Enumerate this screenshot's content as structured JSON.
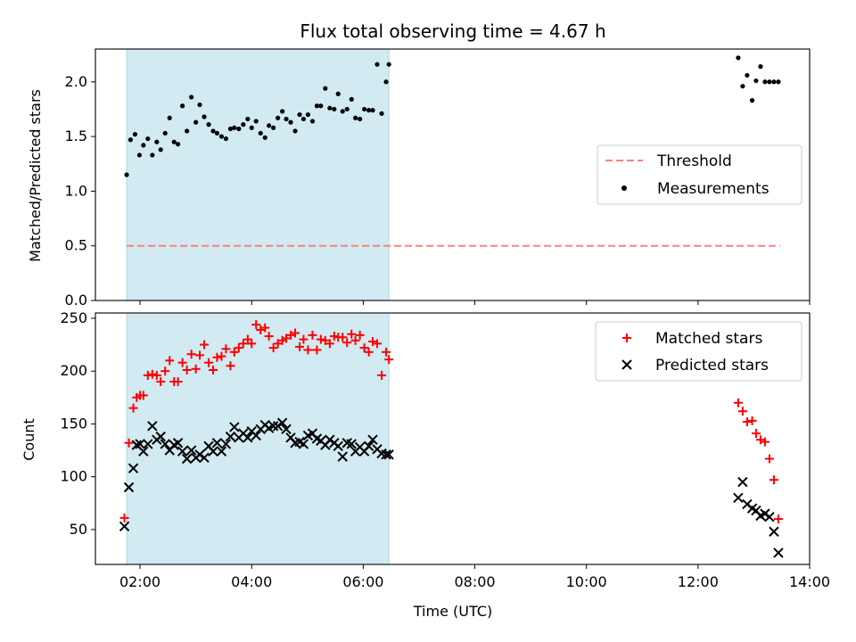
{
  "figure": {
    "title": "Flux total observing time = 4.67 h"
  },
  "chart_data": [
    {
      "type": "scatter",
      "panel": "top",
      "ylabel": "Matched/Predicted stars",
      "xlim": [
        1.2,
        14.0
      ],
      "ylim": [
        0.0,
        2.3
      ],
      "yticks": [
        0.0,
        0.5,
        1.0,
        1.5,
        2.0
      ],
      "ytick_labels": [
        "0.0",
        "0.5",
        "1.0",
        "1.5",
        "2.0"
      ],
      "shaded_span": {
        "x0": 1.76,
        "x1": 6.46,
        "color": "#add8e6"
      },
      "threshold": {
        "name": "Threshold",
        "y": 0.5,
        "x": [
          1.76,
          13.47
        ],
        "color": "#ff7f7f"
      },
      "legend": {
        "placement": "center-right",
        "entries": [
          "Threshold",
          "Measurements"
        ]
      },
      "series": [
        {
          "name": "Measurements",
          "color": "#000000",
          "marker": "dot",
          "x": [
            1.76,
            1.83,
            1.91,
            1.99,
            2.06,
            2.14,
            2.22,
            2.3,
            2.37,
            2.45,
            2.53,
            2.61,
            2.68,
            2.76,
            2.84,
            2.92,
            3.0,
            3.07,
            3.15,
            3.23,
            3.31,
            3.38,
            3.46,
            3.54,
            3.62,
            3.69,
            3.77,
            3.85,
            3.93,
            4.0,
            4.08,
            4.16,
            4.24,
            4.31,
            4.39,
            4.47,
            4.55,
            4.62,
            4.7,
            4.78,
            4.86,
            4.93,
            5.01,
            5.09,
            5.17,
            5.24,
            5.32,
            5.4,
            5.48,
            5.55,
            5.63,
            5.71,
            5.79,
            5.86,
            5.94,
            6.02,
            6.1,
            6.17,
            6.25,
            6.33,
            6.41,
            6.46,
            12.72,
            12.8,
            12.88,
            12.97,
            13.04,
            13.12,
            13.2,
            13.28,
            13.36,
            13.44
          ],
          "y": [
            1.15,
            1.47,
            1.52,
            1.33,
            1.42,
            1.48,
            1.33,
            1.45,
            1.38,
            1.53,
            1.67,
            1.45,
            1.43,
            1.78,
            1.55,
            1.86,
            1.63,
            1.79,
            1.68,
            1.61,
            1.55,
            1.53,
            1.5,
            1.48,
            1.57,
            1.58,
            1.57,
            1.61,
            1.66,
            1.58,
            1.64,
            1.53,
            1.49,
            1.6,
            1.58,
            1.67,
            1.73,
            1.66,
            1.63,
            1.55,
            1.7,
            1.66,
            1.7,
            1.64,
            1.78,
            1.78,
            1.94,
            1.76,
            1.75,
            1.89,
            1.73,
            1.75,
            1.84,
            1.67,
            1.66,
            1.75,
            1.74,
            1.74,
            2.16,
            1.71,
            2.0,
            2.16,
            2.22,
            1.96,
            2.06,
            1.83,
            2.01,
            2.14,
            2.0,
            2.0,
            2.0,
            2.0
          ]
        }
      ]
    },
    {
      "type": "scatter",
      "panel": "bottom",
      "xlabel": "Time (UTC)",
      "ylabel": "Count",
      "xlim": [
        1.2,
        14.0
      ],
      "ylim": [
        17,
        255
      ],
      "xticks": [
        2,
        4,
        6,
        8,
        10,
        12,
        14
      ],
      "xtick_labels": [
        "02:00",
        "04:00",
        "06:00",
        "08:00",
        "10:00",
        "12:00",
        "14:00"
      ],
      "yticks": [
        50,
        100,
        150,
        200,
        250
      ],
      "ytick_labels": [
        "50",
        "100",
        "150",
        "200",
        "250"
      ],
      "shaded_span": {
        "x0": 1.76,
        "x1": 6.46,
        "color": "#add8e6"
      },
      "legend": {
        "placement": "top-right",
        "entries": [
          "Matched stars",
          "Predicted stars"
        ]
      },
      "series": [
        {
          "name": "Matched stars",
          "color": "#ff0000",
          "marker": "plus",
          "x": [
            1.72,
            1.8,
            1.88,
            1.94,
            2.0,
            2.06,
            2.14,
            2.22,
            2.3,
            2.37,
            2.45,
            2.53,
            2.61,
            2.68,
            2.76,
            2.84,
            2.92,
            3.0,
            3.07,
            3.15,
            3.23,
            3.31,
            3.38,
            3.46,
            3.54,
            3.62,
            3.69,
            3.77,
            3.85,
            3.93,
            4.0,
            4.08,
            4.16,
            4.24,
            4.31,
            4.39,
            4.47,
            4.55,
            4.62,
            4.7,
            4.78,
            4.86,
            4.93,
            5.01,
            5.09,
            5.17,
            5.24,
            5.32,
            5.4,
            5.48,
            5.55,
            5.63,
            5.71,
            5.79,
            5.86,
            5.94,
            6.02,
            6.1,
            6.17,
            6.25,
            6.33,
            6.41,
            6.46,
            12.72,
            12.8,
            12.88,
            12.97,
            13.04,
            13.12,
            13.2,
            13.28,
            13.36,
            13.44
          ],
          "y": [
            61,
            132,
            165,
            175,
            177,
            177,
            196,
            197,
            196,
            190,
            200,
            210,
            190,
            190,
            208,
            201,
            216,
            202,
            215,
            225,
            208,
            201,
            213,
            214,
            221,
            205,
            218,
            222,
            226,
            230,
            226,
            244,
            239,
            241,
            233,
            222,
            226,
            229,
            231,
            234,
            236,
            223,
            230,
            220,
            234,
            220,
            230,
            229,
            226,
            233,
            232,
            232,
            227,
            235,
            229,
            234,
            222,
            218,
            228,
            226,
            196,
            218,
            211,
            170,
            162,
            152,
            153,
            141,
            135,
            133,
            117,
            97,
            60
          ]
        },
        {
          "name": "Predicted stars",
          "color": "#000000",
          "marker": "x",
          "x": [
            1.72,
            1.8,
            1.88,
            1.94,
            2.0,
            2.06,
            2.14,
            2.22,
            2.3,
            2.37,
            2.45,
            2.53,
            2.61,
            2.68,
            2.76,
            2.84,
            2.92,
            3.0,
            3.07,
            3.15,
            3.23,
            3.31,
            3.38,
            3.46,
            3.54,
            3.62,
            3.69,
            3.77,
            3.85,
            3.93,
            4.0,
            4.08,
            4.16,
            4.24,
            4.31,
            4.39,
            4.47,
            4.55,
            4.62,
            4.7,
            4.78,
            4.86,
            4.93,
            5.01,
            5.09,
            5.17,
            5.24,
            5.32,
            5.4,
            5.48,
            5.55,
            5.63,
            5.71,
            5.79,
            5.86,
            5.94,
            6.02,
            6.1,
            6.17,
            6.25,
            6.33,
            6.41,
            6.46,
            12.72,
            12.8,
            12.88,
            12.97,
            13.04,
            13.12,
            13.2,
            13.28,
            13.36,
            13.44
          ],
          "y": [
            53,
            90,
            108,
            130,
            131,
            124,
            131,
            148,
            135,
            138,
            131,
            125,
            130,
            132,
            124,
            117,
            125,
            118,
            121,
            118,
            129,
            124,
            132,
            124,
            131,
            138,
            147,
            137,
            141,
            137,
            143,
            139,
            145,
            149,
            146,
            148,
            148,
            151,
            145,
            137,
            132,
            133,
            131,
            139,
            141,
            136,
            134,
            130,
            135,
            132,
            129,
            119,
            132,
            131,
            124,
            128,
            124,
            129,
            135,
            126,
            122,
            121,
            121,
            80,
            95,
            74,
            70,
            68,
            63,
            65,
            62,
            48,
            28
          ]
        }
      ]
    }
  ]
}
